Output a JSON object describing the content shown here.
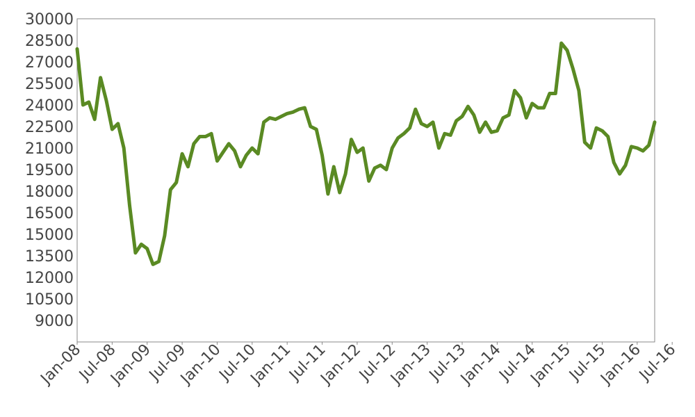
{
  "chart_data": {
    "type": "line",
    "title": "",
    "xlabel": "",
    "ylabel": "",
    "ylim": [
      7500,
      30000
    ],
    "yticks": [
      9000,
      10500,
      12000,
      13500,
      15000,
      16500,
      18000,
      19500,
      21000,
      22500,
      24000,
      25500,
      27000,
      28500,
      30000
    ],
    "xticks": [
      "Jan-08",
      "Jul-08",
      "Jan-09",
      "Jul-09",
      "Jan-10",
      "Jul-10",
      "Jan-11",
      "Jul-11",
      "Jan-12",
      "Jul-12",
      "Jan-13",
      "Jul-13",
      "Jan-14",
      "Jul-14",
      "Jan-15",
      "Jul-15",
      "Jan-16",
      "Jul-16"
    ],
    "grid": false,
    "line_color": "#5a8a23",
    "series": [
      {
        "name": "",
        "points": [
          [
            "Jan-08",
            27900
          ],
          [
            "Feb-08",
            24000
          ],
          [
            "Mar-08",
            24200
          ],
          [
            "Apr-08",
            23000
          ],
          [
            "May-08",
            25900
          ],
          [
            "Jun-08",
            24300
          ],
          [
            "Jul-08",
            22300
          ],
          [
            "Aug-08",
            22700
          ],
          [
            "Sep-08",
            21000
          ],
          [
            "Oct-08",
            17000
          ],
          [
            "Nov-08",
            13700
          ],
          [
            "Dec-08",
            14300
          ],
          [
            "Jan-09",
            14000
          ],
          [
            "Feb-09",
            12900
          ],
          [
            "Mar-09",
            13100
          ],
          [
            "Apr-09",
            14900
          ],
          [
            "May-09",
            18100
          ],
          [
            "Jun-09",
            18600
          ],
          [
            "Jul-09",
            20600
          ],
          [
            "Aug-09",
            19700
          ],
          [
            "Sep-09",
            21300
          ],
          [
            "Oct-09",
            21800
          ],
          [
            "Nov-09",
            21800
          ],
          [
            "Dec-09",
            22000
          ],
          [
            "Jan-10",
            20100
          ],
          [
            "Feb-10",
            20700
          ],
          [
            "Mar-10",
            21300
          ],
          [
            "Apr-10",
            20800
          ],
          [
            "May-10",
            19700
          ],
          [
            "Jun-10",
            20500
          ],
          [
            "Jul-10",
            21000
          ],
          [
            "Aug-10",
            20600
          ],
          [
            "Sep-10",
            22800
          ],
          [
            "Oct-10",
            23100
          ],
          [
            "Nov-10",
            23000
          ],
          [
            "Dec-10",
            23200
          ],
          [
            "Jan-11",
            23400
          ],
          [
            "Feb-11",
            23500
          ],
          [
            "Mar-11",
            23700
          ],
          [
            "Apr-11",
            23800
          ],
          [
            "May-11",
            22500
          ],
          [
            "Jun-11",
            22300
          ],
          [
            "Jul-11",
            20500
          ],
          [
            "Aug-11",
            17800
          ],
          [
            "Sep-11",
            19700
          ],
          [
            "Oct-11",
            17900
          ],
          [
            "Nov-11",
            19200
          ],
          [
            "Dec-11",
            21600
          ],
          [
            "Jan-12",
            20700
          ],
          [
            "Feb-12",
            21000
          ],
          [
            "Mar-12",
            18700
          ],
          [
            "Apr-12",
            19600
          ],
          [
            "May-12",
            19800
          ],
          [
            "Jun-12",
            19500
          ],
          [
            "Jul-12",
            21000
          ],
          [
            "Aug-12",
            21700
          ],
          [
            "Sep-12",
            22000
          ],
          [
            "Oct-12",
            22400
          ],
          [
            "Nov-12",
            23700
          ],
          [
            "Dec-12",
            22700
          ],
          [
            "Jan-13",
            22500
          ],
          [
            "Feb-13",
            22800
          ],
          [
            "Mar-13",
            21000
          ],
          [
            "Apr-13",
            22000
          ],
          [
            "May-13",
            21900
          ],
          [
            "Jun-13",
            22900
          ],
          [
            "Jul-13",
            23200
          ],
          [
            "Aug-13",
            23900
          ],
          [
            "Sep-13",
            23300
          ],
          [
            "Oct-13",
            22100
          ],
          [
            "Nov-13",
            22800
          ],
          [
            "Dec-13",
            22100
          ],
          [
            "Jan-14",
            22200
          ],
          [
            "Feb-14",
            23100
          ],
          [
            "Mar-14",
            23300
          ],
          [
            "Apr-14",
            25000
          ],
          [
            "May-14",
            24500
          ],
          [
            "Jun-14",
            23100
          ],
          [
            "Jul-14",
            24100
          ],
          [
            "Aug-14",
            23800
          ],
          [
            "Sep-14",
            23800
          ],
          [
            "Oct-14",
            24800
          ],
          [
            "Nov-14",
            24800
          ],
          [
            "Dec-14",
            28300
          ],
          [
            "Jan-15",
            27800
          ],
          [
            "Feb-15",
            26500
          ],
          [
            "Mar-15",
            25000
          ],
          [
            "Apr-15",
            21400
          ],
          [
            "May-15",
            21000
          ],
          [
            "Jun-15",
            22400
          ],
          [
            "Jul-15",
            22200
          ],
          [
            "Aug-15",
            21800
          ],
          [
            "Sep-15",
            20000
          ],
          [
            "Oct-15",
            19200
          ],
          [
            "Nov-15",
            19800
          ],
          [
            "Dec-15",
            21100
          ],
          [
            "Jan-16",
            21000
          ],
          [
            "Feb-16",
            20800
          ],
          [
            "Mar-16",
            21200
          ],
          [
            "Apr-16",
            22800
          ]
        ]
      }
    ]
  }
}
